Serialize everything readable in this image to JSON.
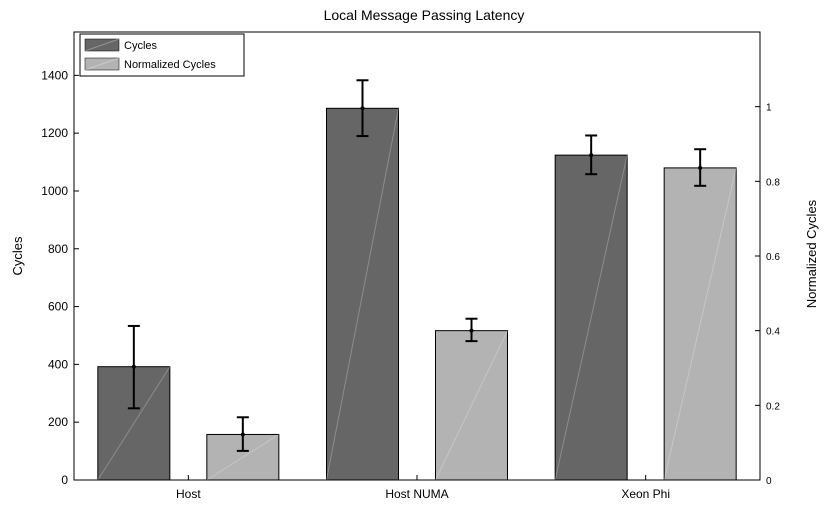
{
  "chart_data": {
    "type": "bar",
    "title": "Local Message Passing Latency",
    "categories": [
      "Host",
      "Host NUMA",
      "Xeon Phi"
    ],
    "series": [
      {
        "name": "Cycles",
        "axis": "left",
        "color": "#666666",
        "values": [
          392,
          1286,
          1124
        ],
        "error_low": [
          248,
          1190,
          1058
        ],
        "error_high": [
          533,
          1383,
          1192
        ]
      },
      {
        "name": "Normalized Cycles",
        "axis": "right",
        "color": "#b3b3b3",
        "values": [
          0.122,
          0.4,
          0.836
        ],
        "error_low": [
          0.078,
          0.372,
          0.788
        ],
        "error_high": [
          0.168,
          0.432,
          0.886
        ]
      }
    ],
    "ylabel": "Cycles",
    "ylabel_right": "Normalized Cycles",
    "ylim": [
      0,
      1550
    ],
    "ylim_right": [
      0,
      1.2
    ],
    "yticks": [
      0,
      200,
      400,
      600,
      800,
      1000,
      1200,
      1400
    ],
    "yticks_right": [
      0,
      0.2,
      0.4,
      0.6,
      0.8,
      1
    ],
    "legend_position": "top-left",
    "grid": false
  }
}
